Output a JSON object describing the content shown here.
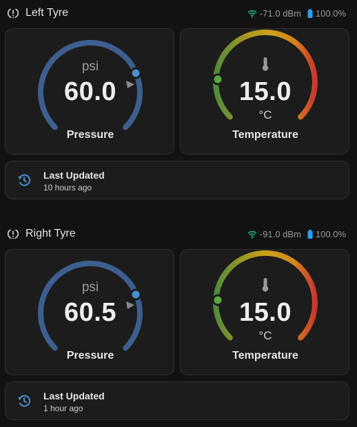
{
  "sensors": [
    {
      "title": "Left Tyre",
      "signal": "-71.0 dBm",
      "battery": "100.0%",
      "pressure": {
        "unit": "psi",
        "value": "60.0",
        "name": "Pressure",
        "level": 0.82
      },
      "temperature": {
        "value": "15.0",
        "unit": "°C",
        "name": "Temperature",
        "level": 0.25
      },
      "last_updated": {
        "label": "Last Updated",
        "value": "10 hours ago"
      }
    },
    {
      "title": "Right Tyre",
      "signal": "-91.0 dBm",
      "battery": "100.0%",
      "pressure": {
        "unit": "psi",
        "value": "60.5",
        "name": "Pressure",
        "level": 0.83
      },
      "temperature": {
        "value": "15.0",
        "unit": "°C",
        "name": "Temperature",
        "level": 0.25
      },
      "last_updated": {
        "label": "Last Updated",
        "value": "1 hour ago"
      }
    }
  ],
  "colors": {
    "background": "#121212",
    "card": "#1c1c1c",
    "pressure_arc": "#3d5f8f",
    "pressure_dot": "#4a8fd1",
    "temp_green": "#4f8a3a",
    "temp_yellow": "#c9a21a",
    "temp_orange": "#d7851d",
    "temp_red": "#c6372c",
    "temp_dot": "#58a83c",
    "wifi": "#22b57d",
    "battery": "#2c9df0",
    "history_icon": "#4a8fd1"
  },
  "icons": {
    "header": "tyre-pressure-icon",
    "signal": "wifi-icon",
    "battery": "battery-icon",
    "temperature": "thermometer-icon",
    "updated": "history-icon"
  }
}
